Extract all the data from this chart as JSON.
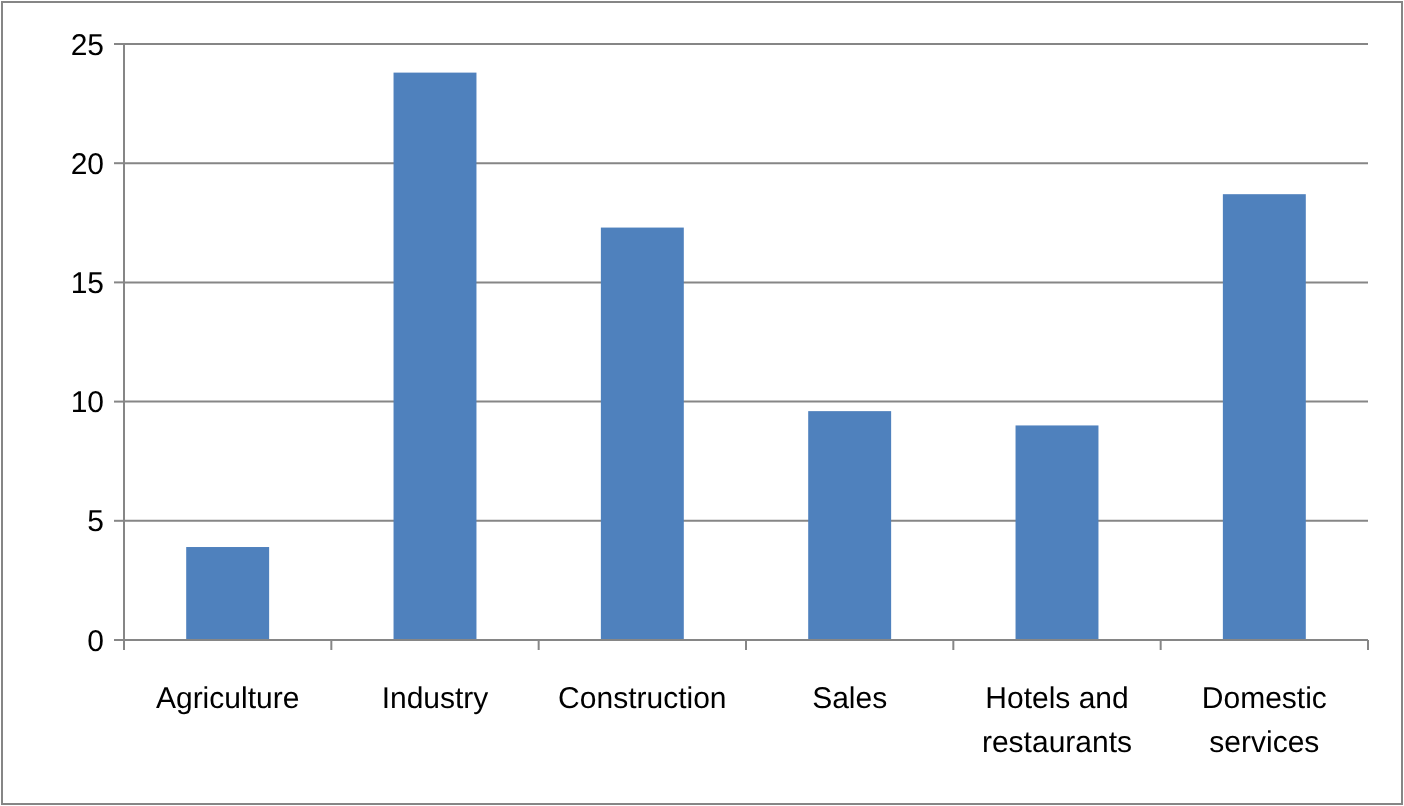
{
  "chart_data": {
    "type": "bar",
    "categories": [
      "Agriculture",
      "Industry",
      "Construction",
      "Sales",
      "Hotels and restaurants",
      "Domestic services"
    ],
    "values": [
      3.9,
      23.8,
      17.3,
      9.6,
      9.0,
      18.7
    ],
    "color": "#4f81bd",
    "ylim": [
      0,
      25
    ],
    "yticks": [
      0,
      5,
      10,
      15,
      20,
      25
    ],
    "grid": "y"
  }
}
